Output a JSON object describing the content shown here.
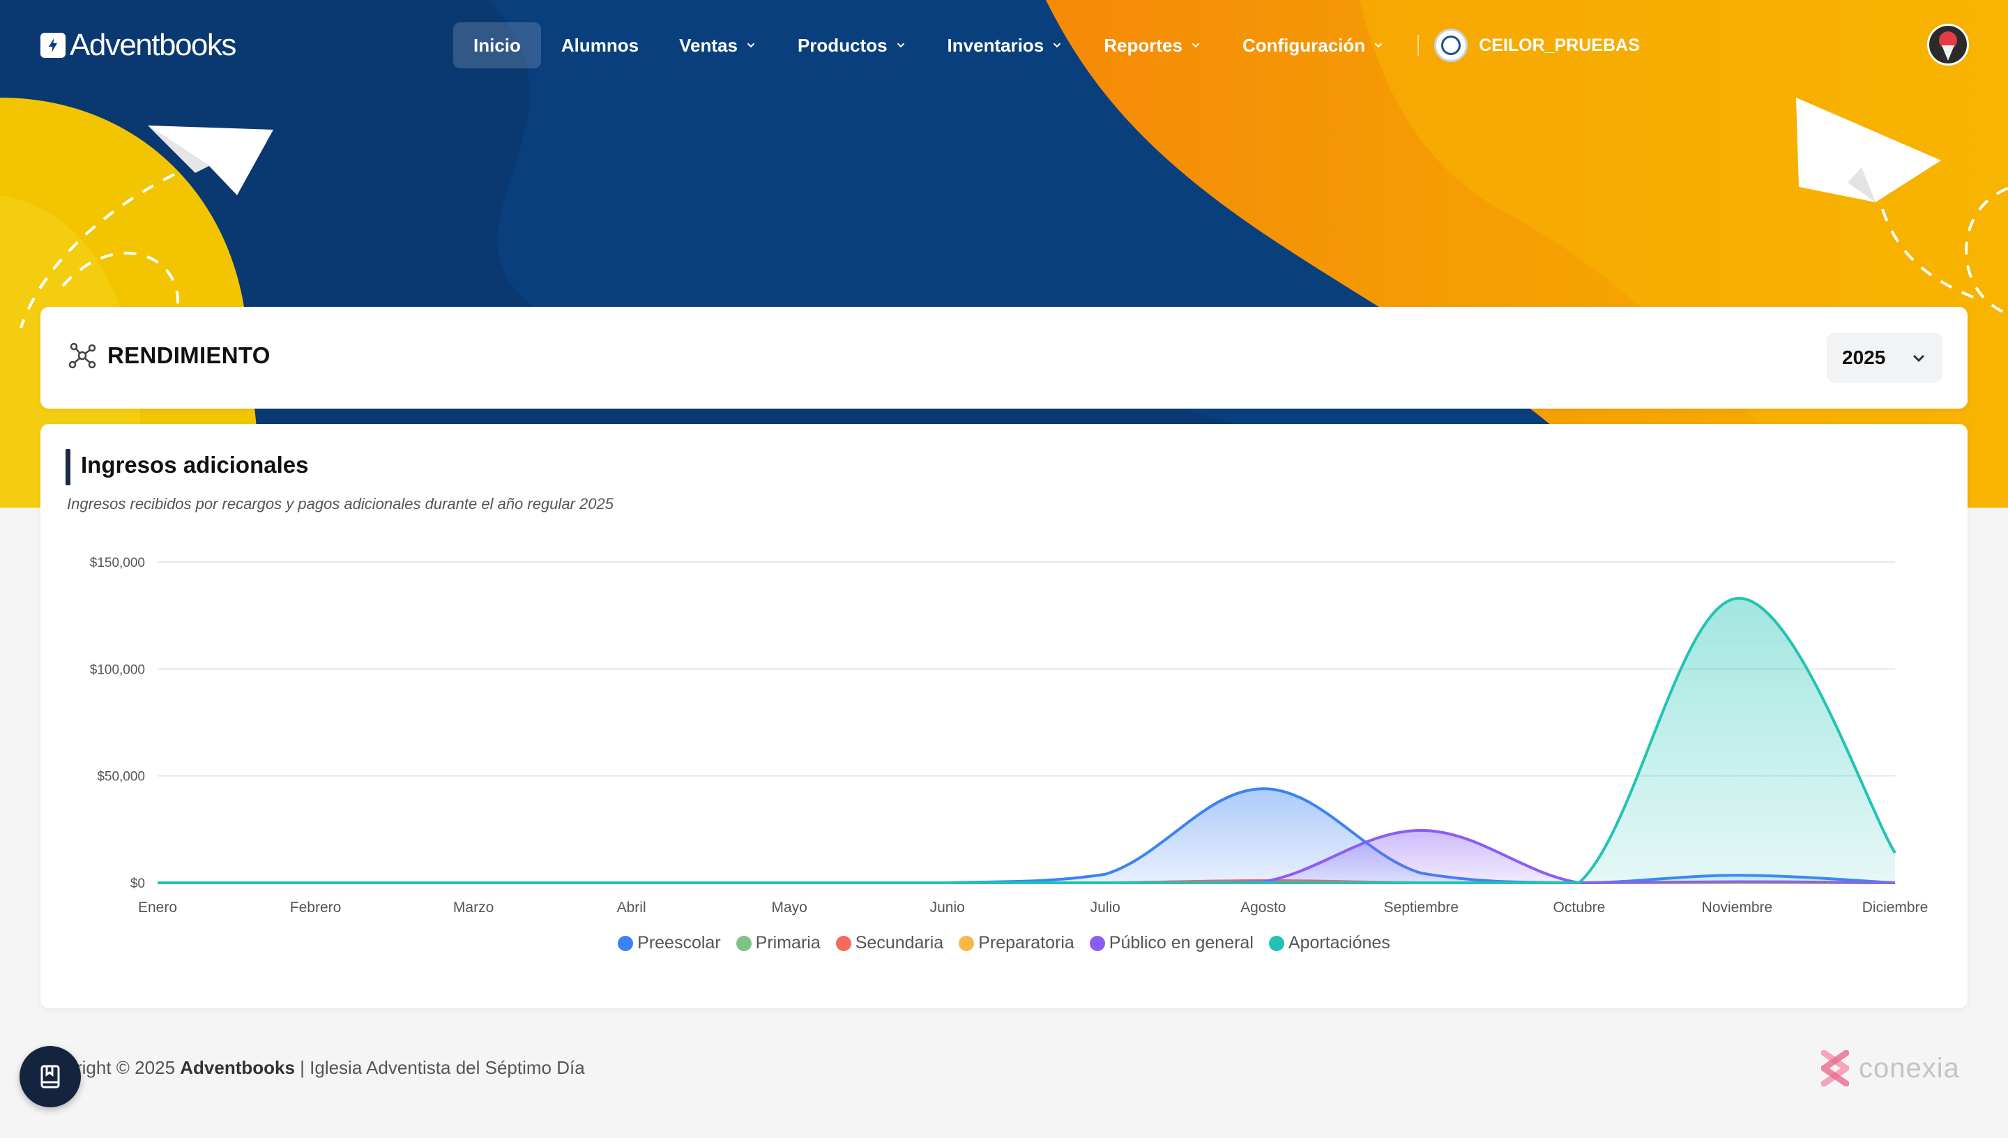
{
  "header": {
    "logo_text": "Adventbooks",
    "nav": [
      {
        "label": "Inicio",
        "active": true,
        "dropdown": false
      },
      {
        "label": "Alumnos",
        "active": false,
        "dropdown": false
      },
      {
        "label": "Ventas",
        "active": false,
        "dropdown": true
      },
      {
        "label": "Productos",
        "active": false,
        "dropdown": true
      },
      {
        "label": "Inventarios",
        "active": false,
        "dropdown": true
      },
      {
        "label": "Reportes",
        "active": false,
        "dropdown": true
      },
      {
        "label": "Configuración",
        "active": false,
        "dropdown": true
      }
    ],
    "org_name": "CEILOR_PRUEBAS"
  },
  "rendimiento": {
    "title": "RENDIMIENTO",
    "year": "2025",
    "icon": "network-icon"
  },
  "chart_card": {
    "title": "Ingresos adicionales",
    "subtitle": "Ingresos recibidos por recargos y pagos adicionales durante el año regular 2025"
  },
  "chart_data": {
    "type": "area",
    "categories": [
      "Enero",
      "Febrero",
      "Marzo",
      "Abril",
      "Mayo",
      "Junio",
      "Julio",
      "Agosto",
      "Septiembre",
      "Octubre",
      "Noviembre",
      "Diciembre"
    ],
    "ylim": [
      0,
      150000
    ],
    "yticks": [
      "$0",
      "$50,000",
      "$100,000",
      "$150,000"
    ],
    "ytick_values": [
      0,
      50000,
      100000,
      150000
    ],
    "grid": true,
    "legend_position": "bottom",
    "series": [
      {
        "name": "Preescolar",
        "color": "#3b82f6",
        "values": [
          0,
          0,
          0,
          0,
          0,
          0,
          4000,
          44000,
          4500,
          0,
          3500,
          0
        ]
      },
      {
        "name": "Primaria",
        "color": "#7dc383",
        "values": [
          0,
          0,
          0,
          0,
          0,
          0,
          0,
          0,
          0,
          0,
          0,
          0
        ]
      },
      {
        "name": "Secundaria",
        "color": "#f26b5b",
        "values": [
          0,
          0,
          0,
          0,
          0,
          0,
          0,
          1000,
          0,
          0,
          0,
          0
        ]
      },
      {
        "name": "Preparatoria",
        "color": "#f7b84b",
        "values": [
          0,
          0,
          0,
          0,
          0,
          0,
          0,
          0,
          0,
          0,
          0,
          0
        ]
      },
      {
        "name": "Público en general",
        "color": "#8b5cf6",
        "values": [
          0,
          0,
          0,
          0,
          0,
          0,
          0,
          500,
          24500,
          0,
          500,
          0
        ]
      },
      {
        "name": "Aportaciónes",
        "color": "#22c3b4",
        "values": [
          0,
          0,
          0,
          0,
          0,
          0,
          0,
          0,
          0,
          0,
          133000,
          14000
        ]
      }
    ]
  },
  "footer": {
    "copyright_prefix": "yright © 2025 ",
    "brand": "Adventbooks",
    "suffix": " | Iglesia Adventista del Séptimo Día",
    "partner": "conexia"
  }
}
